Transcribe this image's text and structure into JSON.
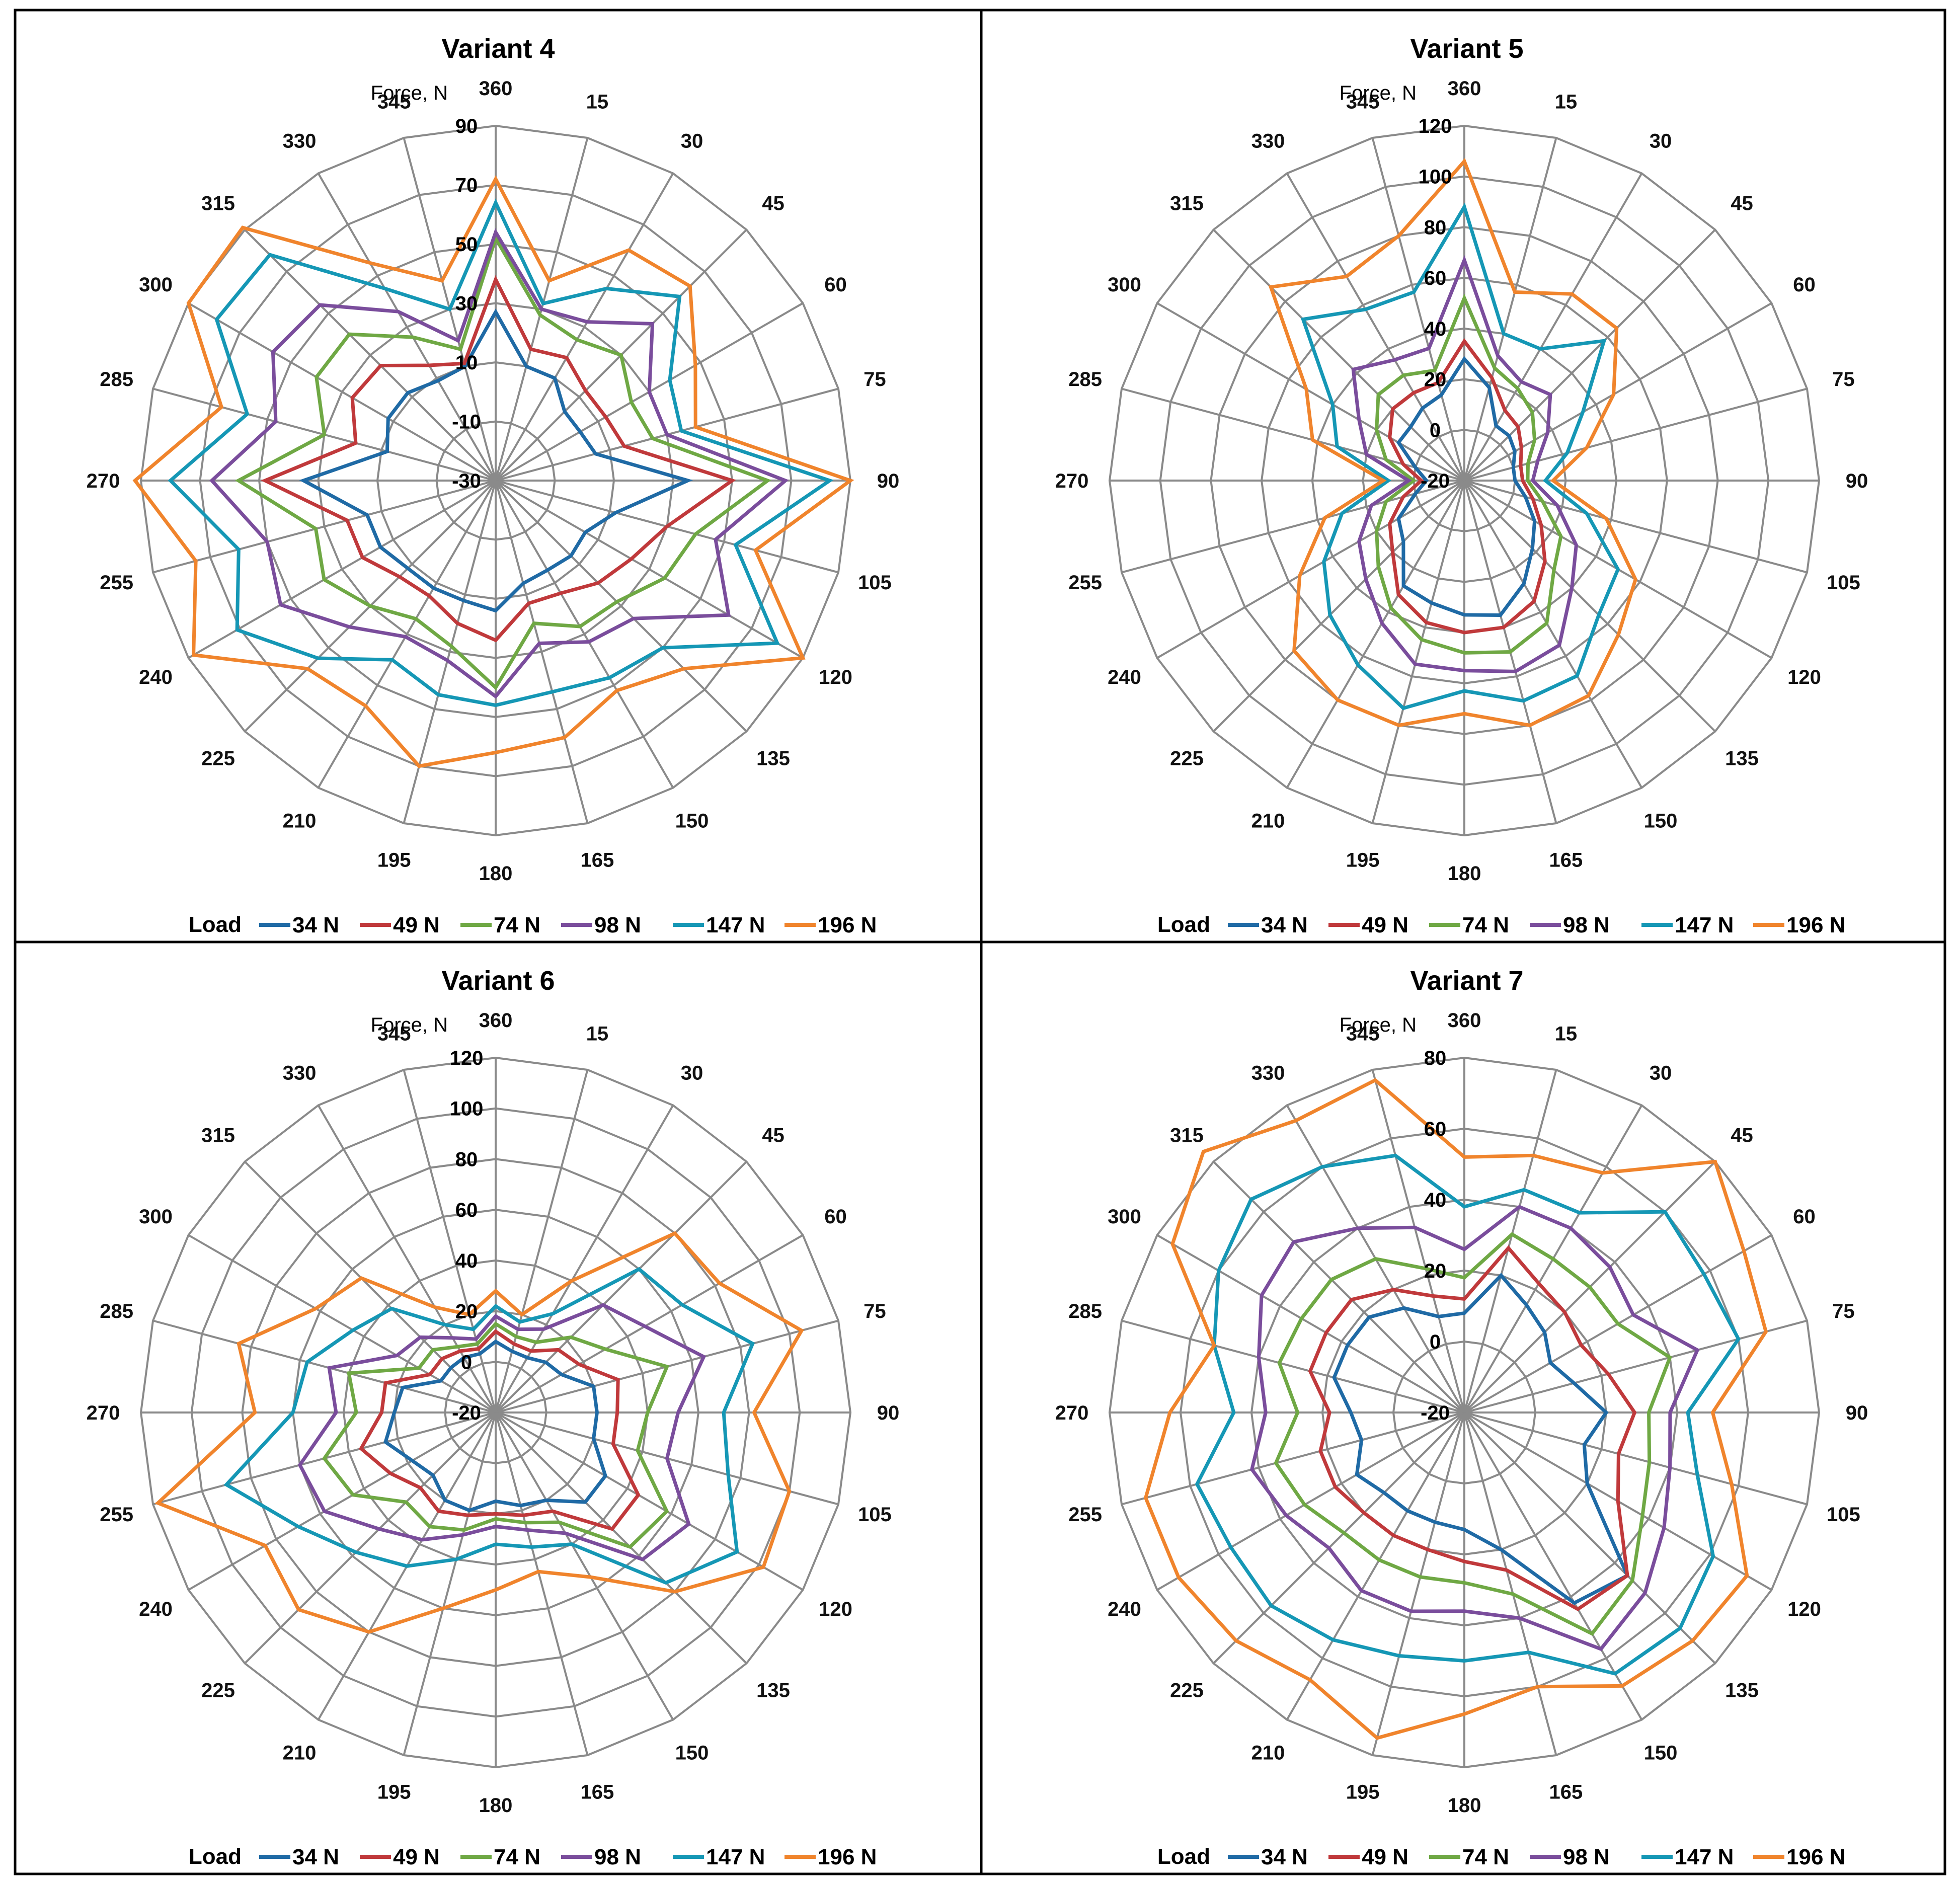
{
  "colors": [
    "#1f6aa5",
    "#c0393b",
    "#6fa844",
    "#7a4d9c",
    "#1597b5",
    "#f0842c"
  ],
  "chart_data": [
    {
      "type": "radar",
      "title": "Variant 4",
      "axis_label": "Force, N",
      "categories": [
        "360",
        "15",
        "30",
        "45",
        "60",
        "75",
        "90",
        "105",
        "120",
        "135",
        "150",
        "165",
        "180",
        "195",
        "210",
        "225",
        "240",
        "255",
        "270",
        "285",
        "300",
        "315",
        "330",
        "345"
      ],
      "rlim": [
        -30,
        90
      ],
      "ticks": [
        "-30",
        "-10",
        "10",
        "30",
        "50",
        "70",
        "90"
      ],
      "legend_title": "Load",
      "series": [
        {
          "name": "34 N",
          "values": [
            27,
            10,
            10,
            3,
            3,
            5,
            35,
            12,
            5,
            6,
            5,
            6,
            14,
            12,
            12,
            12,
            15,
            15,
            35,
            8,
            12,
            12,
            9,
            10
          ]
        },
        {
          "name": "49 N",
          "values": [
            38,
            16,
            18,
            13,
            13,
            15,
            50,
            30,
            23,
            19,
            14,
            13,
            24,
            20,
            15,
            16,
            22,
            22,
            48,
            19,
            26,
            25,
            15,
            11
          ]
        },
        {
          "name": "74 N",
          "values": [
            52,
            28,
            25,
            30,
            23,
            25,
            62,
            40,
            36,
            28,
            27,
            20,
            40,
            28,
            24,
            30,
            37,
            33,
            57,
            30,
            40,
            40,
            26,
            16
          ]
        },
        {
          "name": "98 N",
          "values": [
            54,
            30,
            32,
            45,
            30,
            30,
            68,
            47,
            61,
            36,
            33,
            27,
            43,
            33,
            31,
            40,
            54,
            50,
            66,
            47,
            57,
            54,
            36,
            19
          ]
        },
        {
          "name": "147 N",
          "values": [
            64,
            32,
            45,
            58,
            38,
            35,
            83,
            54,
            80,
            50,
            47,
            44,
            46,
            45,
            40,
            55,
            71,
            60,
            80,
            57,
            79,
            78,
            45,
            30
          ]
        },
        {
          "name": "196 N",
          "values": [
            72,
            40,
            60,
            63,
            48,
            40,
            90,
            61,
            90,
            60,
            52,
            60,
            62,
            70,
            58,
            60,
            88,
            75,
            92,
            66,
            90,
            91,
            55,
            40
          ]
        }
      ]
    },
    {
      "type": "radar",
      "title": "Variant 5",
      "axis_label": "Force, N",
      "categories": [
        "360",
        "15",
        "30",
        "45",
        "60",
        "75",
        "90",
        "105",
        "120",
        "135",
        "150",
        "165",
        "180",
        "195",
        "210",
        "225",
        "240",
        "255",
        "270",
        "285",
        "300",
        "315",
        "330",
        "345"
      ],
      "rlim": [
        -20,
        120
      ],
      "ticks": [
        "-20",
        "0",
        "20",
        "40",
        "60",
        "80",
        "100",
        "120"
      ],
      "legend_title": "Load",
      "series": [
        {
          "name": "34 N",
          "values": [
            28,
            18,
            5,
            5,
            3,
            0,
            0,
            5,
            12,
            18,
            27,
            35,
            33,
            30,
            28,
            14,
            10,
            0,
            -5,
            0,
            10,
            10,
            13,
            15
          ]
        },
        {
          "name": "49 N",
          "values": [
            35,
            22,
            12,
            10,
            6,
            3,
            3,
            8,
            15,
            25,
            35,
            40,
            40,
            38,
            32,
            20,
            14,
            5,
            -3,
            5,
            14,
            20,
            20,
            20
          ]
        },
        {
          "name": "74 N",
          "values": [
            52,
            26,
            22,
            18,
            12,
            6,
            5,
            12,
            24,
            30,
            45,
            50,
            48,
            45,
            38,
            28,
            20,
            12,
            0,
            12,
            20,
            28,
            28,
            25
          ]
        },
        {
          "name": "98 N",
          "values": [
            67,
            31,
            25,
            28,
            18,
            10,
            7,
            18,
            31,
            40,
            55,
            58,
            55,
            55,
            45,
            35,
            28,
            18,
            2,
            20,
            28,
            42,
            35,
            34
          ]
        },
        {
          "name": "147 N",
          "values": [
            88,
            40,
            40,
            58,
            34,
            22,
            12,
            30,
            50,
            55,
            69,
            70,
            63,
            73,
            64,
            55,
            44,
            30,
            10,
            32,
            40,
            70,
            58,
            57
          ]
        },
        {
          "name": "196 N",
          "values": [
            106,
            57,
            65,
            65,
            48,
            30,
            15,
            38,
            58,
            66,
            78,
            80,
            72,
            80,
            80,
            75,
            55,
            37,
            12,
            42,
            52,
            88,
            73,
            80
          ]
        }
      ]
    },
    {
      "type": "radar",
      "title": "Variant 6",
      "axis_label": "Force, N",
      "categories": [
        "360",
        "15",
        "30",
        "45",
        "60",
        "75",
        "90",
        "105",
        "120",
        "135",
        "150",
        "165",
        "180",
        "195",
        "210",
        "225",
        "240",
        "255",
        "270",
        "285",
        "300",
        "315",
        "330",
        "345"
      ],
      "rlim": [
        -20,
        120
      ],
      "ticks": [
        "-20",
        "0",
        "20",
        "40",
        "60",
        "80",
        "100",
        "120"
      ],
      "legend_title": "Load",
      "series": [
        {
          "name": "34 N",
          "values": [
            8,
            5,
            5,
            8,
            10,
            20,
            20,
            20,
            30,
            30,
            20,
            18,
            15,
            20,
            20,
            15,
            18,
            25,
            20,
            18,
            5,
            5,
            5,
            4
          ]
        },
        {
          "name": "49 N",
          "values": [
            12,
            8,
            8,
            15,
            18,
            30,
            28,
            28,
            45,
            45,
            25,
            22,
            20,
            22,
            25,
            22,
            28,
            35,
            25,
            25,
            10,
            10,
            8,
            6
          ]
        },
        {
          "name": "74 N",
          "values": [
            15,
            11,
            12,
            22,
            30,
            50,
            40,
            38,
            58,
            55,
            30,
            25,
            22,
            28,
            32,
            30,
            45,
            50,
            35,
            40,
            15,
            15,
            10,
            8
          ]
        },
        {
          "name": "98 N",
          "values": [
            18,
            14,
            18,
            40,
            48,
            65,
            52,
            50,
            68,
            62,
            35,
            28,
            25,
            30,
            38,
            45,
            58,
            60,
            43,
            48,
            25,
            22,
            14,
            10
          ]
        },
        {
          "name": "147 N",
          "values": [
            22,
            17,
            25,
            60,
            65,
            85,
            70,
            75,
            90,
            75,
            40,
            35,
            32,
            40,
            50,
            58,
            70,
            90,
            60,
            57,
            45,
            38,
            20,
            14
          ]
        },
        {
          "name": "196 N",
          "values": [
            28,
            20,
            40,
            80,
            82,
            105,
            82,
            100,
            102,
            80,
            55,
            45,
            50,
            60,
            80,
            90,
            85,
            118,
            75,
            85,
            62,
            55,
            28,
            20
          ]
        }
      ]
    },
    {
      "type": "radar",
      "title": "Variant 7",
      "axis_label": "Force, N",
      "categories": [
        "360",
        "15",
        "30",
        "45",
        "60",
        "75",
        "90",
        "105",
        "120",
        "135",
        "150",
        "165",
        "180",
        "195",
        "210",
        "225",
        "240",
        "255",
        "270",
        "285",
        "300",
        "315",
        "330",
        "345"
      ],
      "rlim": [
        -20,
        80
      ],
      "ticks": [
        "-20",
        "0",
        "20",
        "40",
        "60",
        "80"
      ],
      "legend_title": "Load",
      "series": [
        {
          "name": "34 N",
          "values": [
            8,
            20,
            15,
            12,
            8,
            12,
            20,
            15,
            20,
            45,
            42,
            20,
            13,
            12,
            12,
            12,
            15,
            10,
            12,
            18,
            18,
            18,
            14,
            8
          ]
        },
        {
          "name": "49 N",
          "values": [
            12,
            28,
            22,
            20,
            18,
            22,
            28,
            25,
            30,
            45,
            44,
            26,
            22,
            20,
            20,
            20,
            22,
            22,
            18,
            25,
            25,
            25,
            20,
            14
          ]
        },
        {
          "name": "74 N",
          "values": [
            18,
            32,
            30,
            30,
            30,
            40,
            32,
            34,
            38,
            47,
            52,
            33,
            28,
            28,
            28,
            28,
            32,
            35,
            27,
            34,
            33,
            33,
            30,
            22
          ]
        },
        {
          "name": "98 N",
          "values": [
            26,
            40,
            40,
            38,
            35,
            48,
            38,
            40,
            45,
            52,
            57,
            40,
            36,
            38,
            38,
            34,
            38,
            42,
            36,
            40,
            46,
            48,
            40,
            34
          ]
        },
        {
          "name": "147 N",
          "values": [
            38,
            45,
            45,
            60,
            58,
            60,
            43,
            48,
            61,
            66,
            65,
            50,
            50,
            51,
            54,
            57,
            56,
            58,
            45,
            53,
            60,
            65,
            60,
            55
          ]
        },
        {
          "name": "196 N",
          "values": [
            52,
            55,
            58,
            80,
            71,
            68,
            50,
            58,
            72,
            71,
            69,
            60,
            65,
            75,
            67,
            71,
            73,
            73,
            63,
            53,
            75,
            84,
            75,
            77
          ]
        }
      ]
    }
  ]
}
